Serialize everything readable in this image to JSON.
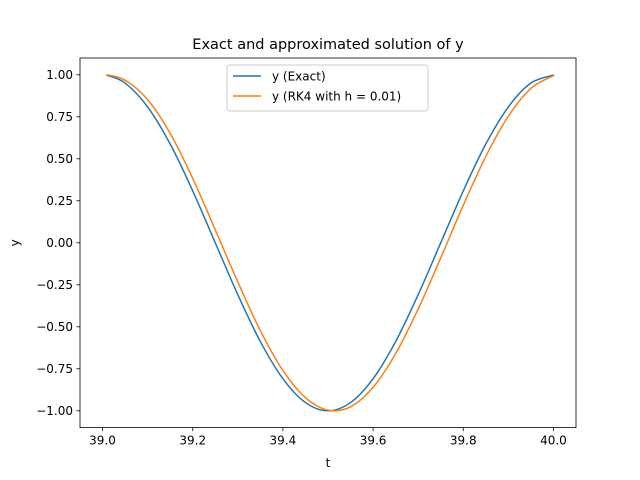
{
  "chart_data": {
    "type": "line",
    "title": "Exact and approximated solution of y",
    "xlabel": "t",
    "ylabel": "y",
    "xlim": [
      38.95,
      40.05
    ],
    "ylim": [
      -1.1,
      1.1
    ],
    "xticks": [
      39.0,
      39.2,
      39.4,
      39.6,
      39.8,
      40.0
    ],
    "xtick_labels": [
      "39.0",
      "39.2",
      "39.4",
      "39.6",
      "39.8",
      "40.0"
    ],
    "yticks": [
      -1.0,
      -0.75,
      -0.5,
      -0.25,
      0.0,
      0.25,
      0.5,
      0.75,
      1.0
    ],
    "ytick_labels": [
      "−1.00",
      "−0.75",
      "−0.50",
      "−0.25",
      "0.00",
      "0.25",
      "0.50",
      "0.75",
      "1.00"
    ],
    "grid": false,
    "legend_position": "upper-center",
    "x": [
      39.01,
      39.05,
      39.1,
      39.15,
      39.2,
      39.25,
      39.3,
      39.35,
      39.4,
      39.45,
      39.5,
      39.55,
      39.6,
      39.65,
      39.7,
      39.75,
      39.8,
      39.85,
      39.9,
      39.95,
      40.0
    ],
    "series": [
      {
        "name": "y (Exact)",
        "color": "#1f77b4",
        "values": [
          0.998,
          0.951,
          0.809,
          0.588,
          0.309,
          0.0,
          -0.309,
          -0.588,
          -0.809,
          -0.951,
          -1.0,
          -0.951,
          -0.809,
          -0.588,
          -0.309,
          0.0,
          0.309,
          0.588,
          0.809,
          0.951,
          0.998
        ]
      },
      {
        "name": "y (RK4 with h = 0.01)",
        "color": "#ff7f0e",
        "values": [
          1.0,
          0.968,
          0.852,
          0.651,
          0.383,
          0.078,
          -0.233,
          -0.523,
          -0.76,
          -0.922,
          -0.996,
          -0.976,
          -0.86,
          -0.66,
          -0.394,
          -0.09,
          0.223,
          0.514,
          0.754,
          0.919,
          0.995
        ]
      }
    ]
  }
}
